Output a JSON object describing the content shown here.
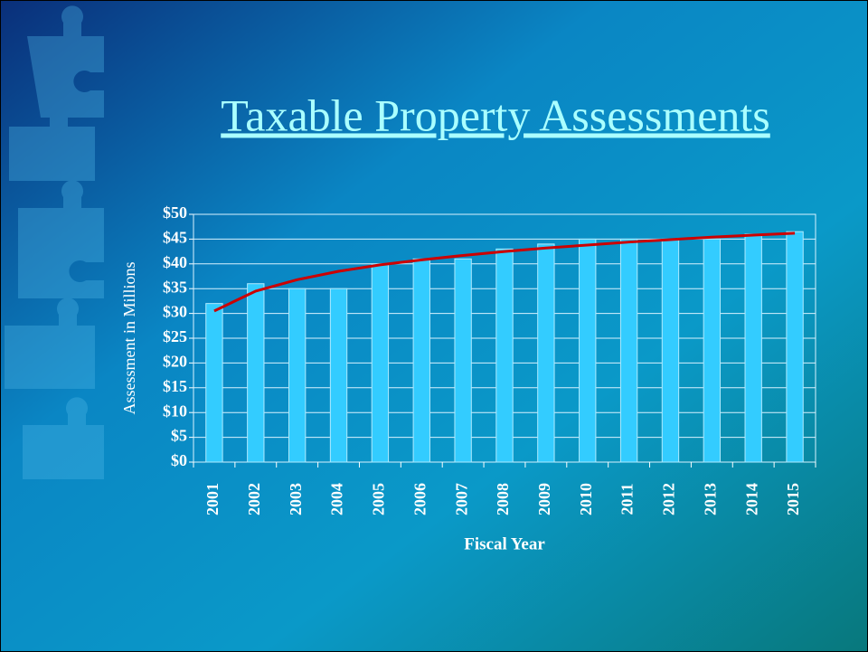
{
  "chart_data": {
    "type": "bar",
    "title": "Taxable Property Assessments",
    "y_label": "Assessment in Millions",
    "x_label": "Fiscal Year",
    "categories": [
      "2001",
      "2002",
      "2003",
      "2004",
      "2005",
      "2006",
      "2007",
      "2008",
      "2009",
      "2010",
      "2011",
      "2012",
      "2013",
      "2014",
      "2015"
    ],
    "values": [
      32,
      36,
      35,
      35,
      40,
      41,
      41,
      43,
      44,
      45,
      45,
      45,
      45,
      46,
      46.5
    ],
    "color": "#33ccff",
    "trendline": {
      "color": "#cc0000",
      "values": [
        30.5,
        34.5,
        36.8,
        38.5,
        39.8,
        40.8,
        41.7,
        42.5,
        43.2,
        43.8,
        44.4,
        44.9,
        45.4,
        45.8,
        46.2
      ]
    },
    "ylim": [
      0,
      50
    ],
    "yticks": [
      {
        "value": 0,
        "label": "$0"
      },
      {
        "value": 5,
        "label": "$5"
      },
      {
        "value": 10,
        "label": "$10"
      },
      {
        "value": 15,
        "label": "$15"
      },
      {
        "value": 20,
        "label": "$20"
      },
      {
        "value": 25,
        "label": "$25"
      },
      {
        "value": 30,
        "label": "$30"
      },
      {
        "value": 35,
        "label": "$35"
      },
      {
        "value": 40,
        "label": "$40"
      },
      {
        "value": 45,
        "label": "$45"
      },
      {
        "value": 50,
        "label": "$50"
      }
    ],
    "grid": true
  }
}
